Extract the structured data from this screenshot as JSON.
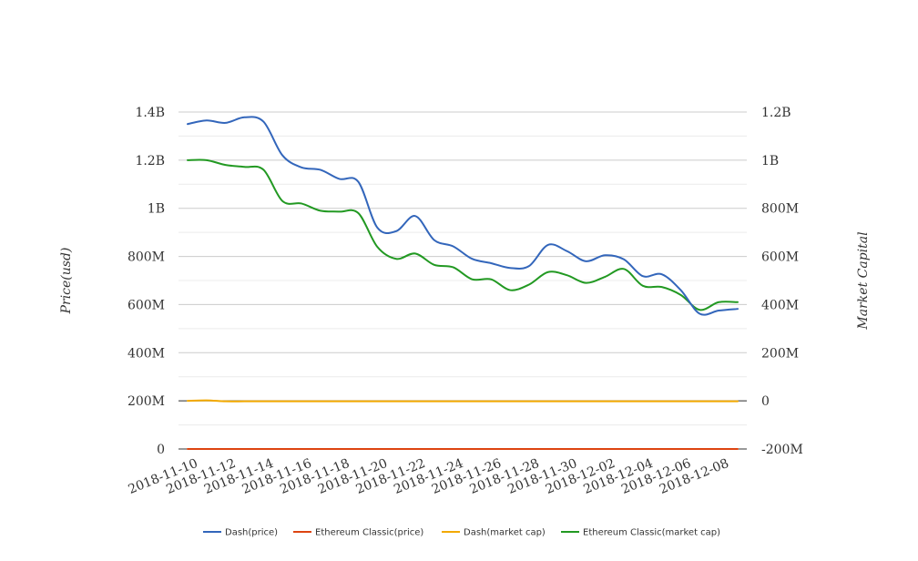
{
  "chart_data": {
    "type": "line",
    "title": "",
    "xlabel": "",
    "ylabel": "Price(usd)",
    "y2label": "Market Capital",
    "grid": true,
    "legend_position": "bottom",
    "categories": [
      "2018-11-10",
      "2018-11-12",
      "2018-11-14",
      "2018-11-16",
      "2018-11-18",
      "2018-11-20",
      "2018-11-22",
      "2018-11-24",
      "2018-11-26",
      "2018-11-28",
      "2018-11-30",
      "2018-12-02",
      "2018-12-04",
      "2018-12-06",
      "2018-12-08"
    ],
    "y_left": {
      "ticks": [
        0,
        200000000,
        400000000,
        600000000,
        800000000,
        1000000000,
        1200000000,
        1400000000
      ],
      "tick_labels": [
        "0",
        "200M",
        "400M",
        "600M",
        "800M",
        "1B",
        "1.2B",
        "1.4B"
      ],
      "range": [
        0,
        1400000000
      ]
    },
    "y_right": {
      "ticks": [
        -200000000,
        0,
        200000000,
        400000000,
        600000000,
        800000000,
        1000000000,
        1200000000
      ],
      "tick_labels": [
        "-200M",
        "0",
        "200M",
        "400M",
        "600M",
        "800M",
        "1B",
        "1.2B"
      ],
      "range": [
        -200000000,
        1200000000
      ]
    },
    "x": [
      "2018-11-10",
      "2018-11-11",
      "2018-11-12",
      "2018-11-13",
      "2018-11-14",
      "2018-11-15",
      "2018-11-16",
      "2018-11-17",
      "2018-11-18",
      "2018-11-19",
      "2018-11-20",
      "2018-11-21",
      "2018-11-22",
      "2018-11-23",
      "2018-11-24",
      "2018-11-25",
      "2018-11-26",
      "2018-11-27",
      "2018-11-28",
      "2018-11-29",
      "2018-11-30",
      "2018-12-01",
      "2018-12-02",
      "2018-12-03",
      "2018-12-04",
      "2018-12-05",
      "2018-12-06",
      "2018-12-07",
      "2018-12-08",
      "2018-12-09"
    ],
    "series": [
      {
        "name": "Dash(price)",
        "axis": "left",
        "color": "#3366bb",
        "values": [
          1350000000,
          1365000000,
          1355000000,
          1378000000,
          1360000000,
          1220000000,
          1170000000,
          1160000000,
          1122000000,
          1110000000,
          920000000,
          905000000,
          968000000,
          868000000,
          842000000,
          790000000,
          772000000,
          752000000,
          760000000,
          848000000,
          822000000,
          780000000,
          805000000,
          788000000,
          718000000,
          726000000,
          660000000,
          562000000,
          575000000,
          582000000
        ]
      },
      {
        "name": "Ethereum Classic(price)",
        "axis": "left",
        "color": "#dd4411",
        "values": [
          9.5,
          9.6,
          9.4,
          9.2,
          9.0,
          7.5,
          6.8,
          6.7,
          6.5,
          6.4,
          4.9,
          4.6,
          4.8,
          4.4,
          4.3,
          4.1,
          4.0,
          3.9,
          4.1,
          4.6,
          4.5,
          4.4,
          4.6,
          4.7,
          4.2,
          4.1,
          4.0,
          3.6,
          3.9,
          4.0
        ]
      },
      {
        "name": "Dash(market cap)",
        "axis": "left",
        "color": "#f2a900",
        "values": [
          200000000,
          202000000,
          198000000,
          198000000,
          198000000,
          198000000,
          198000000,
          198000000,
          198000000,
          198000000,
          198000000,
          198000000,
          198000000,
          198000000,
          198000000,
          198000000,
          198000000,
          198000000,
          198000000,
          198000000,
          198000000,
          198000000,
          198000000,
          198000000,
          198000000,
          198000000,
          198000000,
          198000000,
          198000000,
          198000000
        ]
      },
      {
        "name": "Ethereum Classic(market cap)",
        "axis": "right",
        "color": "#229922",
        "values": [
          1000000000,
          1000000000,
          980000000,
          972000000,
          960000000,
          830000000,
          820000000,
          790000000,
          786000000,
          780000000,
          640000000,
          590000000,
          612000000,
          565000000,
          555000000,
          505000000,
          505000000,
          460000000,
          483000000,
          535000000,
          522000000,
          490000000,
          515000000,
          548000000,
          478000000,
          473000000,
          440000000,
          378000000,
          410000000,
          410000000
        ]
      }
    ]
  }
}
